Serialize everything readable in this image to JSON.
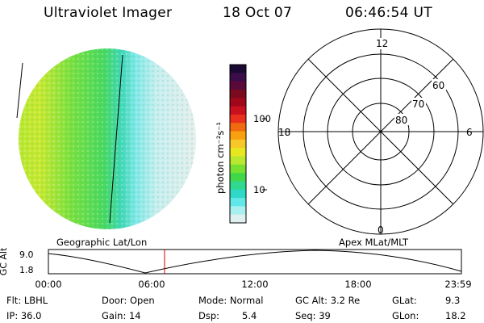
{
  "header": {
    "instrument": "Ultraviolet Imager",
    "date": "18 Oct 07",
    "time": "06:46:54 UT"
  },
  "colorbar": {
    "unit_label": "photon cm⁻²s⁻¹",
    "ticks": [
      "100",
      "10"
    ],
    "colors": [
      "#1a0a33",
      "#3a0c4a",
      "#5a0a3a",
      "#7a0a1e",
      "#a0081a",
      "#c8101e",
      "#e8301c",
      "#f06a10",
      "#f8a010",
      "#f8c828",
      "#e8e820",
      "#b8e830",
      "#78e030",
      "#40d848",
      "#30d890",
      "#30d8c8",
      "#60e8e8",
      "#a8f0f0",
      "#e0f0f0"
    ]
  },
  "polar_grid": {
    "mlt_labels": {
      "top": "12",
      "left": "18",
      "right": "6",
      "bottom": "0"
    },
    "lat_labels": [
      "60",
      "70",
      "80"
    ]
  },
  "projection_labels": {
    "left": "Geographic Lat/Lon",
    "right": "Apex MLat/MLT"
  },
  "altitude_plot": {
    "ylabel": "GC Alt",
    "y_ticks": [
      "9.0",
      "1.8"
    ],
    "x_ticks": [
      "00:00",
      "06:00",
      "12:00",
      "18:00",
      "23:59"
    ],
    "marker_color": "#d00000"
  },
  "status": {
    "flt": "Flt: LBHL",
    "ip": "IP: 36.0",
    "door": "Door: Open",
    "gain": "Gain: 14",
    "mode": "Mode: Normal",
    "dsp": "Dsp:",
    "dsp_val": "5.4",
    "gc_alt": "GC Alt: 3.2 Re",
    "seq": "Seq: 39",
    "glat": "GLat:",
    "glat_val": "9.3",
    "glon": "GLon:",
    "glon_val": "18.2"
  }
}
